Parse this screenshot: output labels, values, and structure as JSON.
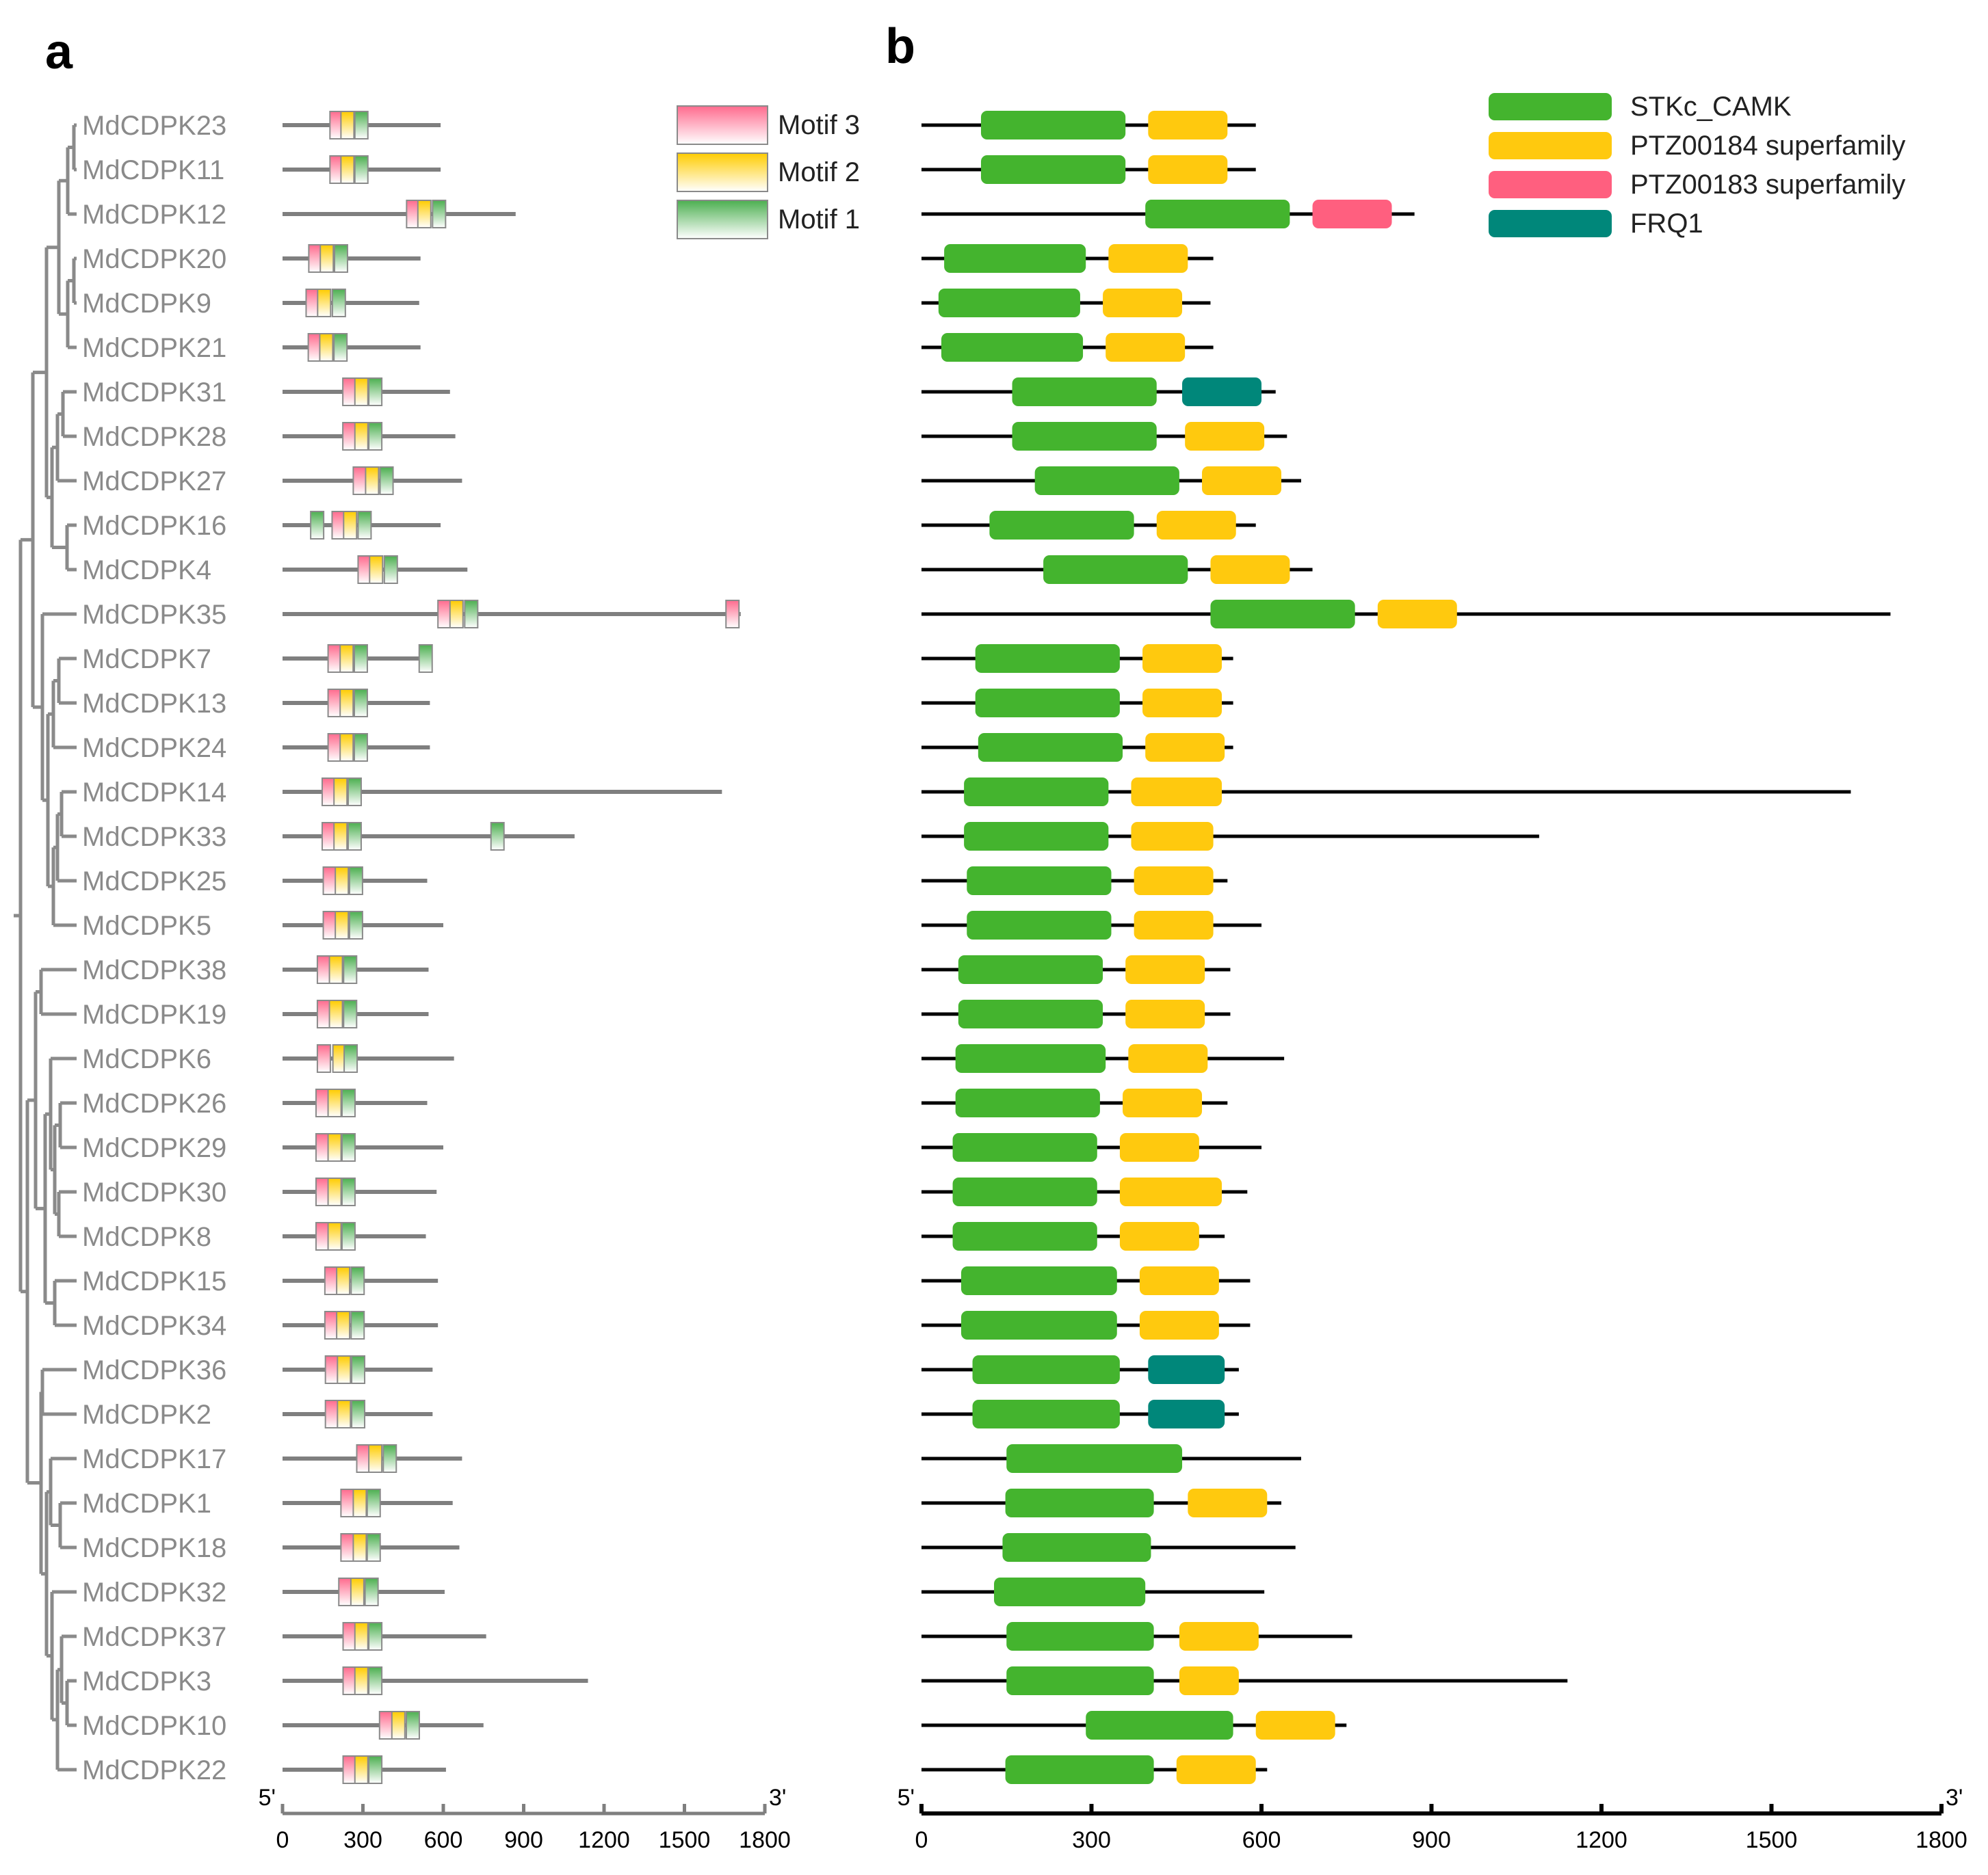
{
  "panel_labels": {
    "a": "a",
    "b": "b"
  },
  "colors": {
    "tree": "#8a8a8a",
    "protein_line_a": "#7f7f7f",
    "protein_line_b": "#000000",
    "motif1": "#4caf50",
    "motif2": "#ffcc00",
    "motif3": "#ff6b8e",
    "STKc_CAMK": "#44b42e",
    "PTZ00184": "#ffc90e",
    "PTZ00183": "#ff5f7f",
    "FRQ1": "#00877a"
  },
  "motif_legend": [
    {
      "key": "motif3",
      "label": "Motif 3"
    },
    {
      "key": "motif2",
      "label": "Motif 2"
    },
    {
      "key": "motif1",
      "label": "Motif 1"
    }
  ],
  "domain_legend": [
    {
      "key": "STKc_CAMK",
      "label": "STKc_CAMK"
    },
    {
      "key": "PTZ00184",
      "label": "PTZ00184 superfamily"
    },
    {
      "key": "PTZ00183",
      "label": "PTZ00183 superfamily"
    },
    {
      "key": "FRQ1",
      "label": "FRQ1"
    }
  ],
  "axis_a": {
    "start_label": "5'",
    "end_label": "3'",
    "ticks": [
      0,
      300,
      600,
      900,
      1200,
      1500,
      1800
    ],
    "max": 1800
  },
  "axis_b": {
    "start_label": "5'",
    "end_label": "3'",
    "ticks": [
      0,
      300,
      600,
      900,
      1200,
      1500,
      1800
    ],
    "max": 1800
  },
  "genes": [
    {
      "name": "MdCDPK23",
      "length": 590,
      "motifs": [
        [
          "motif3",
          177
        ],
        [
          "motif2",
          218
        ],
        [
          "motif1",
          270
        ]
      ],
      "domains": [
        [
          "STKc_CAMK",
          105,
          360
        ],
        [
          "PTZ00184",
          400,
          540
        ]
      ]
    },
    {
      "name": "MdCDPK11",
      "length": 590,
      "motifs": [
        [
          "motif3",
          177
        ],
        [
          "motif2",
          218
        ],
        [
          "motif1",
          270
        ]
      ],
      "domains": [
        [
          "STKc_CAMK",
          105,
          360
        ],
        [
          "PTZ00184",
          400,
          540
        ]
      ]
    },
    {
      "name": "MdCDPK12",
      "length": 870,
      "motifs": [
        [
          "motif3",
          463
        ],
        [
          "motif2",
          505
        ],
        [
          "motif1",
          560
        ]
      ],
      "domains": [
        [
          "STKc_CAMK",
          395,
          650
        ],
        [
          "PTZ00183",
          690,
          830
        ]
      ]
    },
    {
      "name": "MdCDPK20",
      "length": 515,
      "motifs": [
        [
          "motif3",
          98
        ],
        [
          "motif2",
          141
        ],
        [
          "motif1",
          194
        ]
      ],
      "domains": [
        [
          "STKc_CAMK",
          40,
          290
        ],
        [
          "PTZ00184",
          330,
          470
        ]
      ]
    },
    {
      "name": "MdCDPK9",
      "length": 510,
      "motifs": [
        [
          "motif3",
          88
        ],
        [
          "motif2",
          131
        ],
        [
          "motif1",
          186
        ]
      ],
      "domains": [
        [
          "STKc_CAMK",
          30,
          280
        ],
        [
          "PTZ00184",
          320,
          460
        ]
      ]
    },
    {
      "name": "MdCDPK21",
      "length": 515,
      "motifs": [
        [
          "motif3",
          96
        ],
        [
          "motif2",
          139
        ],
        [
          "motif1",
          192
        ]
      ],
      "domains": [
        [
          "STKc_CAMK",
          35,
          285
        ],
        [
          "PTZ00184",
          325,
          465
        ]
      ]
    },
    {
      "name": "MdCDPK31",
      "length": 625,
      "motifs": [
        [
          "motif3",
          225
        ],
        [
          "motif2",
          270
        ],
        [
          "motif1",
          322
        ]
      ],
      "domains": [
        [
          "STKc_CAMK",
          160,
          415
        ],
        [
          "FRQ1",
          460,
          600
        ]
      ]
    },
    {
      "name": "MdCDPK28",
      "length": 645,
      "motifs": [
        [
          "motif3",
          225
        ],
        [
          "motif2",
          270
        ],
        [
          "motif1",
          322
        ]
      ],
      "domains": [
        [
          "STKc_CAMK",
          160,
          415
        ],
        [
          "PTZ00184",
          465,
          605
        ]
      ]
    },
    {
      "name": "MdCDPK27",
      "length": 670,
      "motifs": [
        [
          "motif3",
          264
        ],
        [
          "motif2",
          310
        ],
        [
          "motif1",
          364
        ]
      ],
      "domains": [
        [
          "STKc_CAMK",
          200,
          455
        ],
        [
          "PTZ00184",
          495,
          635
        ]
      ]
    },
    {
      "name": "MdCDPK16",
      "length": 590,
      "motifs": [
        [
          "motif1",
          105
        ],
        [
          "motif3",
          185
        ],
        [
          "motif2",
          228
        ],
        [
          "motif1",
          282
        ]
      ],
      "domains": [
        [
          "STKc_CAMK",
          120,
          375
        ],
        [
          "PTZ00184",
          415,
          555
        ]
      ]
    },
    {
      "name": "MdCDPK4",
      "length": 690,
      "motifs": [
        [
          "motif3",
          282
        ],
        [
          "motif2",
          325
        ],
        [
          "motif1",
          380
        ]
      ],
      "domains": [
        [
          "STKc_CAMK",
          215,
          470
        ],
        [
          "PTZ00184",
          510,
          650
        ]
      ]
    },
    {
      "name": "MdCDPK35",
      "length": 1710,
      "motifs": [
        [
          "motif3",
          580
        ],
        [
          "motif2",
          625
        ],
        [
          "motif1",
          680
        ],
        [
          "motif3",
          1655
        ]
      ],
      "domains": [
        [
          "STKc_CAMK",
          510,
          765
        ],
        [
          "PTZ00184",
          805,
          945
        ]
      ]
    },
    {
      "name": "MdCDPK7",
      "length": 550,
      "motifs": [
        [
          "motif3",
          170
        ],
        [
          "motif2",
          215
        ],
        [
          "motif1",
          268
        ],
        [
          "motif1",
          510
        ]
      ],
      "domains": [
        [
          "STKc_CAMK",
          95,
          350
        ],
        [
          "PTZ00184",
          390,
          530
        ]
      ]
    },
    {
      "name": "MdCDPK13",
      "length": 550,
      "motifs": [
        [
          "motif3",
          170
        ],
        [
          "motif2",
          215
        ],
        [
          "motif1",
          268
        ]
      ],
      "domains": [
        [
          "STKc_CAMK",
          95,
          350
        ],
        [
          "PTZ00184",
          390,
          530
        ]
      ]
    },
    {
      "name": "MdCDPK24",
      "length": 550,
      "motifs": [
        [
          "motif3",
          170
        ],
        [
          "motif2",
          215
        ],
        [
          "motif1",
          268
        ]
      ],
      "domains": [
        [
          "STKc_CAMK",
          100,
          355
        ],
        [
          "PTZ00184",
          395,
          535
        ]
      ]
    },
    {
      "name": "MdCDPK14",
      "length": 1640,
      "motifs": [
        [
          "motif3",
          148
        ],
        [
          "motif2",
          192
        ],
        [
          "motif1",
          245
        ]
      ],
      "domains": [
        [
          "STKc_CAMK",
          75,
          330
        ],
        [
          "PTZ00184",
          370,
          530
        ]
      ]
    },
    {
      "name": "MdCDPK33",
      "length": 1090,
      "motifs": [
        [
          "motif3",
          148
        ],
        [
          "motif2",
          192
        ],
        [
          "motif1",
          245
        ],
        [
          "motif1",
          778
        ]
      ],
      "domains": [
        [
          "STKc_CAMK",
          75,
          330
        ],
        [
          "PTZ00184",
          370,
          515
        ]
      ]
    },
    {
      "name": "MdCDPK25",
      "length": 540,
      "motifs": [
        [
          "motif3",
          152
        ],
        [
          "motif2",
          197
        ],
        [
          "motif1",
          250
        ]
      ],
      "domains": [
        [
          "STKc_CAMK",
          80,
          335
        ],
        [
          "PTZ00184",
          375,
          515
        ]
      ]
    },
    {
      "name": "MdCDPK5",
      "length": 600,
      "motifs": [
        [
          "motif3",
          152
        ],
        [
          "motif2",
          197
        ],
        [
          "motif1",
          250
        ]
      ],
      "domains": [
        [
          "STKc_CAMK",
          80,
          335
        ],
        [
          "PTZ00184",
          375,
          515
        ]
      ]
    },
    {
      "name": "MdCDPK38",
      "length": 545,
      "motifs": [
        [
          "motif3",
          130
        ],
        [
          "motif2",
          175
        ],
        [
          "motif1",
          228
        ]
      ],
      "domains": [
        [
          "STKc_CAMK",
          65,
          320
        ],
        [
          "PTZ00184",
          360,
          500
        ]
      ]
    },
    {
      "name": "MdCDPK19",
      "length": 545,
      "motifs": [
        [
          "motif3",
          130
        ],
        [
          "motif2",
          175
        ],
        [
          "motif1",
          228
        ]
      ],
      "domains": [
        [
          "STKc_CAMK",
          65,
          320
        ],
        [
          "PTZ00184",
          360,
          500
        ]
      ]
    },
    {
      "name": "MdCDPK6",
      "length": 640,
      "motifs": [
        [
          "motif3",
          130
        ],
        [
          "motif2",
          188
        ],
        [
          "motif1",
          230
        ]
      ],
      "domains": [
        [
          "STKc_CAMK",
          60,
          325
        ],
        [
          "PTZ00184",
          365,
          505
        ]
      ]
    },
    {
      "name": "MdCDPK26",
      "length": 540,
      "motifs": [
        [
          "motif3",
          125
        ],
        [
          "motif2",
          170
        ],
        [
          "motif1",
          222
        ]
      ],
      "domains": [
        [
          "STKc_CAMK",
          60,
          315
        ],
        [
          "PTZ00184",
          355,
          495
        ]
      ]
    },
    {
      "name": "MdCDPK29",
      "length": 600,
      "motifs": [
        [
          "motif3",
          125
        ],
        [
          "motif2",
          170
        ],
        [
          "motif1",
          222
        ]
      ],
      "domains": [
        [
          "STKc_CAMK",
          55,
          310
        ],
        [
          "PTZ00184",
          350,
          490
        ]
      ]
    },
    {
      "name": "MdCDPK30",
      "length": 575,
      "motifs": [
        [
          "motif3",
          125
        ],
        [
          "motif2",
          170
        ],
        [
          "motif1",
          222
        ]
      ],
      "domains": [
        [
          "STKc_CAMK",
          55,
          310
        ],
        [
          "PTZ00184",
          350,
          530
        ]
      ]
    },
    {
      "name": "MdCDPK8",
      "length": 535,
      "motifs": [
        [
          "motif3",
          125
        ],
        [
          "motif2",
          170
        ],
        [
          "motif1",
          222
        ]
      ],
      "domains": [
        [
          "STKc_CAMK",
          55,
          310
        ],
        [
          "PTZ00184",
          350,
          490
        ]
      ]
    },
    {
      "name": "MdCDPK15",
      "length": 580,
      "motifs": [
        [
          "motif3",
          158
        ],
        [
          "motif2",
          202
        ],
        [
          "motif1",
          256
        ]
      ],
      "domains": [
        [
          "STKc_CAMK",
          70,
          345
        ],
        [
          "PTZ00184",
          385,
          525
        ]
      ]
    },
    {
      "name": "MdCDPK34",
      "length": 580,
      "motifs": [
        [
          "motif3",
          158
        ],
        [
          "motif2",
          202
        ],
        [
          "motif1",
          256
        ]
      ],
      "domains": [
        [
          "STKc_CAMK",
          70,
          345
        ],
        [
          "PTZ00184",
          385,
          525
        ]
      ]
    },
    {
      "name": "MdCDPK36",
      "length": 560,
      "motifs": [
        [
          "motif3",
          160
        ],
        [
          "motif2",
          205
        ],
        [
          "motif1",
          258
        ]
      ],
      "domains": [
        [
          "STKc_CAMK",
          90,
          350
        ],
        [
          "FRQ1",
          400,
          535
        ]
      ]
    },
    {
      "name": "MdCDPK2",
      "length": 560,
      "motifs": [
        [
          "motif3",
          160
        ],
        [
          "motif2",
          205
        ],
        [
          "motif1",
          258
        ]
      ],
      "domains": [
        [
          "STKc_CAMK",
          90,
          350
        ],
        [
          "FRQ1",
          400,
          535
        ]
      ]
    },
    {
      "name": "MdCDPK17",
      "length": 670,
      "motifs": [
        [
          "motif3",
          277
        ],
        [
          "motif2",
          322
        ],
        [
          "motif1",
          376
        ]
      ],
      "domains": [
        [
          "STKc_CAMK",
          150,
          460
        ]
      ]
    },
    {
      "name": "MdCDPK1",
      "length": 635,
      "motifs": [
        [
          "motif3",
          218
        ],
        [
          "motif2",
          264
        ],
        [
          "motif1",
          316
        ]
      ],
      "domains": [
        [
          "STKc_CAMK",
          148,
          410
        ],
        [
          "PTZ00184",
          470,
          610
        ]
      ]
    },
    {
      "name": "MdCDPK18",
      "length": 660,
      "motifs": [
        [
          "motif3",
          218
        ],
        [
          "motif2",
          264
        ],
        [
          "motif1",
          316
        ]
      ],
      "domains": [
        [
          "STKc_CAMK",
          143,
          405
        ]
      ]
    },
    {
      "name": "MdCDPK32",
      "length": 605,
      "motifs": [
        [
          "motif3",
          210
        ],
        [
          "motif2",
          255
        ],
        [
          "motif1",
          308
        ]
      ],
      "domains": [
        [
          "STKc_CAMK",
          128,
          395
        ]
      ]
    },
    {
      "name": "MdCDPK37",
      "length": 760,
      "motifs": [
        [
          "motif3",
          226
        ],
        [
          "motif2",
          270
        ],
        [
          "motif1",
          322
        ]
      ],
      "domains": [
        [
          "STKc_CAMK",
          150,
          410
        ],
        [
          "PTZ00184",
          455,
          595
        ]
      ]
    },
    {
      "name": "MdCDPK3",
      "length": 1140,
      "motifs": [
        [
          "motif3",
          226
        ],
        [
          "motif2",
          270
        ],
        [
          "motif1",
          322
        ]
      ],
      "domains": [
        [
          "STKc_CAMK",
          150,
          410
        ],
        [
          "PTZ00184",
          455,
          560
        ]
      ]
    },
    {
      "name": "MdCDPK10",
      "length": 750,
      "motifs": [
        [
          "motif3",
          362
        ],
        [
          "motif2",
          408
        ],
        [
          "motif1",
          462
        ]
      ],
      "domains": [
        [
          "STKc_CAMK",
          290,
          550
        ],
        [
          "PTZ00184",
          590,
          730
        ]
      ]
    },
    {
      "name": "MdCDPK22",
      "length": 610,
      "motifs": [
        [
          "motif3",
          226
        ],
        [
          "motif2",
          270
        ],
        [
          "motif1",
          322
        ]
      ],
      "domains": [
        [
          "STKc_CAMK",
          148,
          410
        ],
        [
          "PTZ00184",
          450,
          590
        ]
      ]
    }
  ]
}
